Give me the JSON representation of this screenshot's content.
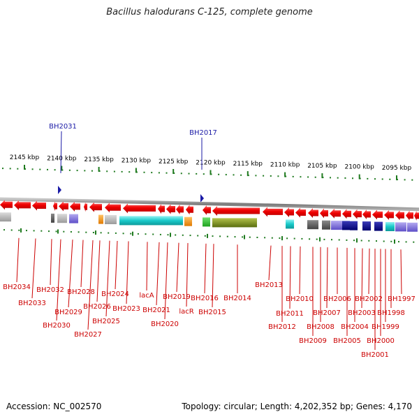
{
  "header": {
    "title": "Bacillus halodurans C-125, complete genome"
  },
  "footer": {
    "accession": "Accession: NC_002570",
    "summary": "Topology: circular; Length: 4,202,352 bp; Genes: 4,170"
  },
  "scale": [
    {
      "label": "2145 kbp",
      "x": 2145
    },
    {
      "label": "2140 kbp",
      "x": 2140
    },
    {
      "label": "2135 kbp",
      "x": 2135
    },
    {
      "label": "2130 kbp",
      "x": 2130
    },
    {
      "label": "2125 kbp",
      "x": 2125
    },
    {
      "label": "2120 kbp",
      "x": 2120
    },
    {
      "label": "2115 kbp",
      "x": 2115
    },
    {
      "label": "2110 kbp",
      "x": 2110
    },
    {
      "label": "2105 kbp",
      "x": 2105
    },
    {
      "label": "2100 kbp",
      "x": 2100
    },
    {
      "label": "2095 kbp",
      "x": 2095
    }
  ],
  "markers": [
    {
      "label": "BH2031",
      "color": "#1a1aa6"
    },
    {
      "label": "BH2017",
      "color": "#1a1aa6"
    }
  ],
  "genes": [
    {
      "label": "BH2034"
    },
    {
      "label": "BH2033"
    },
    {
      "label": "BH2032"
    },
    {
      "label": "BH2030"
    },
    {
      "label": "BH2029"
    },
    {
      "label": "BH2028"
    },
    {
      "label": "BH2027"
    },
    {
      "label": "BH2026"
    },
    {
      "label": "BH2025"
    },
    {
      "label": "BH2024"
    },
    {
      "label": "BH2023"
    },
    {
      "label": "lacA"
    },
    {
      "label": "BH2021"
    },
    {
      "label": "BH2020"
    },
    {
      "label": "BH2019"
    },
    {
      "label": "lacR"
    },
    {
      "label": "BH2016"
    },
    {
      "label": "BH2015"
    },
    {
      "label": "BH2014"
    },
    {
      "label": "BH2013"
    },
    {
      "label": "BH2012"
    },
    {
      "label": "BH2011"
    },
    {
      "label": "BH2010"
    },
    {
      "label": "BH2009"
    },
    {
      "label": "BH2008"
    },
    {
      "label": "BH2007"
    },
    {
      "label": "BH2006"
    },
    {
      "label": "BH2005"
    },
    {
      "label": "BH2004"
    },
    {
      "label": "BH2003"
    },
    {
      "label": "BH2002"
    },
    {
      "label": "BH2001"
    },
    {
      "label": "BH2000"
    },
    {
      "label": "BH1999"
    },
    {
      "label": "BH1998"
    },
    {
      "label": "BH1997"
    }
  ],
  "colors": {
    "gene": "#ee0000",
    "gene_label": "#cc0000",
    "backbone": "#8c8c8c",
    "tick": "#1f7a1f",
    "marker": "#1a1aa6"
  }
}
